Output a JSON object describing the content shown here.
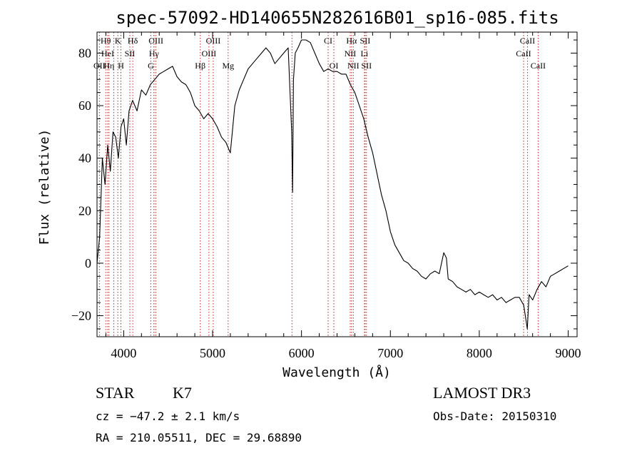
{
  "chart_data": {
    "type": "line",
    "title": "spec-57092-HD140655N282616B01_sp16-085.fits",
    "xlabel": "Wavelength (Å)",
    "ylabel": "Flux (relative)",
    "xlim": [
      3700,
      9100
    ],
    "ylim": [
      -28,
      88
    ],
    "x_ticks": [
      4000,
      5000,
      6000,
      7000,
      8000,
      9000
    ],
    "y_ticks": [
      -20,
      0,
      20,
      40,
      60,
      80
    ],
    "grid": false,
    "series": [
      {
        "x": [
          3700,
          3730,
          3760,
          3790,
          3820,
          3850,
          3880,
          3910,
          3940,
          3970,
          4000,
          4030,
          4060,
          4100,
          4150,
          4200,
          4250,
          4300,
          4350,
          4400,
          4450,
          4500,
          4550,
          4600,
          4650,
          4700,
          4750,
          4800,
          4850,
          4900,
          4950,
          5000,
          5050,
          5100,
          5150,
          5200,
          5250,
          5300,
          5350,
          5400,
          5450,
          5500,
          5550,
          5600,
          5650,
          5700,
          5750,
          5800,
          5850,
          5890,
          5900,
          5910,
          5930,
          5960,
          6000,
          6050,
          6100,
          6150,
          6200,
          6250,
          6300,
          6350,
          6400,
          6450,
          6500,
          6550,
          6600,
          6650,
          6700,
          6750,
          6800,
          6850,
          6900,
          6950,
          7000,
          7050,
          7100,
          7150,
          7200,
          7250,
          7300,
          7350,
          7400,
          7450,
          7500,
          7550,
          7600,
          7630,
          7650,
          7700,
          7750,
          7800,
          7850,
          7900,
          7950,
          8000,
          8050,
          8100,
          8150,
          8200,
          8250,
          8300,
          8350,
          8400,
          8450,
          8500,
          8540,
          8560,
          8600,
          8650,
          8700,
          8750,
          8800,
          8850,
          8900,
          8950,
          9000
        ],
        "y": [
          0,
          10,
          40,
          30,
          45,
          35,
          50,
          48,
          40,
          52,
          55,
          45,
          58,
          62,
          58,
          66,
          64,
          68,
          70,
          72,
          73,
          74,
          75,
          71,
          69,
          68,
          65,
          60,
          58,
          55,
          57,
          55,
          52,
          48,
          46,
          42,
          60,
          66,
          70,
          74,
          76,
          78,
          80,
          82,
          80,
          76,
          78,
          80,
          82,
          50,
          27,
          70,
          80,
          82,
          85,
          85,
          84,
          80,
          76,
          73,
          74,
          73,
          73,
          72,
          72,
          68,
          65,
          60,
          55,
          48,
          42,
          34,
          26,
          20,
          12,
          7,
          4,
          1,
          0,
          -2,
          -3,
          -5,
          -6,
          -4,
          -3,
          -4,
          4,
          2,
          -6,
          -7,
          -9,
          -10,
          -11,
          -10,
          -12,
          -11,
          -12,
          -13,
          -12,
          -14,
          -13,
          -15,
          -14,
          -13,
          -13,
          -16,
          -25,
          -12,
          -14,
          -10,
          -7,
          -9,
          -5,
          -4,
          -3,
          -2,
          -1
        ]
      }
    ],
    "lines": [
      {
        "label": "Hθ",
        "x": 3798,
        "row": 0
      },
      {
        "label": "HeI",
        "x": 3820,
        "row": 1
      },
      {
        "label": "OII",
        "x": 3727,
        "row": 2
      },
      {
        "label": "Hη",
        "x": 3835,
        "row": 2
      },
      {
        "label": "K",
        "x": 3934,
        "row": 0
      },
      {
        "label": "SII",
        "x": 4069,
        "row": 1
      },
      {
        "label": "H",
        "x": 3969,
        "row": 2
      },
      {
        "label": "Hδ",
        "x": 4102,
        "row": 0
      },
      {
        "label": "OIII",
        "x": 4363,
        "row": 0
      },
      {
        "label": "Hγ",
        "x": 4341,
        "row": 1
      },
      {
        "label": "G",
        "x": 4305,
        "row": 2
      },
      {
        "label": "Hβ",
        "x": 4861,
        "row": 2
      },
      {
        "label": "OIII",
        "x": 5007,
        "row": 0
      },
      {
        "label": "OIII",
        "x": 4959,
        "row": 1
      },
      {
        "label": "Mg",
        "x": 5175,
        "row": 2
      },
      {
        "label": "CI",
        "x": 6300,
        "row": 0
      },
      {
        "label": "OI",
        "x": 6364,
        "row": 2
      },
      {
        "label": "Hα",
        "x": 6563,
        "row": 0
      },
      {
        "label": "SII",
        "x": 6716,
        "row": 0
      },
      {
        "label": "NII",
        "x": 6548,
        "row": 1
      },
      {
        "label": "Li",
        "x": 6708,
        "row": 1
      },
      {
        "label": "NII",
        "x": 6583,
        "row": 2
      },
      {
        "label": "SII",
        "x": 6731,
        "row": 2
      },
      {
        "label": "CaII",
        "x": 8542,
        "row": 0
      },
      {
        "label": "CaII",
        "x": 8498,
        "row": 1
      },
      {
        "label": "CaII",
        "x": 8662,
        "row": 2
      },
      {
        "label": "",
        "x": 3889,
        "row": 3
      },
      {
        "label": "",
        "x": 5893,
        "row": 3
      },
      {
        "label": "",
        "x": 4340,
        "row": 3
      }
    ]
  },
  "info": {
    "object_class": "STAR",
    "subclass": "K7",
    "survey": "LAMOST DR3",
    "cz": "cz = −47.2 ± 2.1 km/s",
    "obs_date": "Obs-Date: 20150310",
    "coords": "RA = 210.05511, DEC =  29.68890"
  }
}
